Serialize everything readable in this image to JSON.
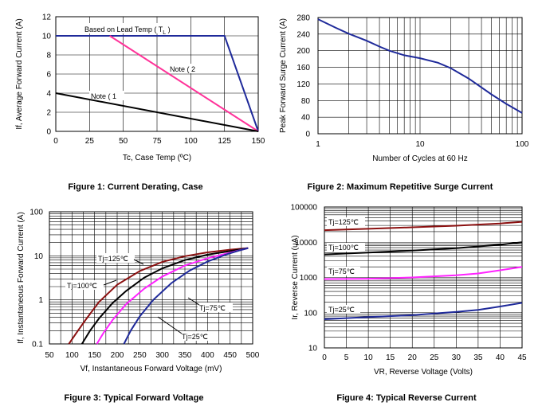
{
  "chart_data": [
    {
      "type": "line",
      "caption": "Figure 1: Current Derating, Case",
      "xlabel": "Tc, Case Temp (ºC)",
      "ylabel": "If, Average Forward Current (A)",
      "xlim": [
        0,
        150
      ],
      "ylim": [
        0,
        12
      ],
      "xticks": [
        "0",
        "25",
        "50",
        "75",
        "100",
        "125",
        "150"
      ],
      "yticks": [
        "0",
        "2",
        "4",
        "6",
        "8",
        "10",
        "12"
      ],
      "grid": true,
      "series": [
        {
          "name": "Based on Lead Temp ( T",
          "name_sub": "L",
          "name_end": " )",
          "color": "#1f2a9a",
          "x": [
            0,
            125,
            150
          ],
          "y": [
            10,
            10,
            0
          ]
        },
        {
          "name": "Note ( 2",
          "color": "#ff3399",
          "x": [
            40,
            150
          ],
          "y": [
            10,
            0
          ]
        },
        {
          "name": "Note ( 1",
          "color": "#000000",
          "x": [
            0,
            150
          ],
          "y": [
            4,
            0
          ]
        }
      ]
    },
    {
      "type": "line",
      "caption": "Figure 2: Maximum Repetitive Surge Current",
      "xlabel": "Number of Cycles at 60 Hz",
      "ylabel": "Peak Forward Surge Current (A)",
      "xscale": "log",
      "xlim": [
        1,
        100
      ],
      "ylim": [
        0,
        280
      ],
      "xticks": [
        "1",
        "10",
        "100"
      ],
      "yticks": [
        "0",
        "40",
        "80",
        "120",
        "160",
        "200",
        "240",
        "280"
      ],
      "grid": true,
      "series": [
        {
          "color": "#1f2a9a",
          "x": [
            1,
            1.5,
            2,
            3,
            4,
            5,
            7,
            10,
            15,
            20,
            30,
            50,
            70,
            100
          ],
          "y": [
            276,
            255,
            241,
            224,
            210,
            200,
            189,
            182,
            171,
            158,
            133,
            95,
            72,
            50
          ]
        }
      ]
    },
    {
      "type": "line",
      "caption": "Figure 3: Typical Forward Voltage",
      "xlabel": "Vf, Instantaneous Forward  Voltage (mV)",
      "ylabel": "If, Instantaneous Forward Current (A)",
      "yscale": "log",
      "xlim": [
        50,
        500
      ],
      "ylim": [
        0.1,
        100
      ],
      "xticks": [
        "50",
        "100",
        "150",
        "200",
        "250",
        "300",
        "350",
        "400",
        "450",
        "500"
      ],
      "yticks": [
        "0.1",
        "1",
        "10",
        "100"
      ],
      "grid": true,
      "series": [
        {
          "name": "Tj=125℃",
          "color": "#8b1010",
          "x": [
            93,
            110,
            130,
            160,
            200,
            250,
            300,
            350,
            400,
            450,
            490
          ],
          "y": [
            0.1,
            0.18,
            0.35,
            0.9,
            2.2,
            4.5,
            7.3,
            9.8,
            12,
            13.8,
            15
          ]
        },
        {
          "name": "Tj=100℃",
          "color": "#000000",
          "x": [
            122,
            140,
            160,
            190,
            220,
            260,
            300,
            350,
            400,
            450,
            490
          ],
          "y": [
            0.1,
            0.2,
            0.38,
            0.85,
            1.6,
            3.2,
            5.2,
            8,
            10.6,
            12.8,
            15
          ]
        },
        {
          "name": "Tj=75℃",
          "color": "#ff22ff",
          "x": [
            155,
            170,
            190,
            220,
            260,
            300,
            350,
            400,
            450,
            490
          ],
          "y": [
            0.1,
            0.18,
            0.35,
            0.8,
            1.8,
            3.4,
            6,
            8.8,
            11.8,
            15
          ]
        },
        {
          "name": "Tj=25℃",
          "color": "#1f2a9a",
          "x": [
            215,
            230,
            250,
            280,
            320,
            360,
            400,
            440,
            470,
            490
          ],
          "y": [
            0.1,
            0.2,
            0.42,
            1.0,
            2.4,
            4.6,
            7.4,
            10.6,
            13.2,
            15
          ]
        }
      ]
    },
    {
      "type": "line",
      "caption": "Figure 4: Typical Reverse Current",
      "xlabel": "VR, Reverse Voltage (Volts)",
      "ylabel": "Ir, Reverse Current (uA)",
      "yscale": "log",
      "xlim": [
        0,
        45
      ],
      "ylim": [
        10,
        100000
      ],
      "xticks": [
        "0",
        "5",
        "10",
        "15",
        "20",
        "25",
        "30",
        "35",
        "40",
        "45"
      ],
      "yticks": [
        "10",
        "100",
        "1000",
        "10000",
        "100000"
      ],
      "grid": true,
      "series": [
        {
          "name": "Tj=125℃",
          "color": "#8b1010",
          "x": [
            0,
            10,
            20,
            30,
            40,
            45
          ],
          "y": [
            22000,
            24000,
            26500,
            29500,
            34000,
            38000
          ]
        },
        {
          "name": "Tj=100℃",
          "color": "#000000",
          "x": [
            0,
            10,
            20,
            30,
            40,
            45
          ],
          "y": [
            4500,
            5100,
            5800,
            6800,
            8500,
            10000
          ]
        },
        {
          "name": "Tj=75℃",
          "color": "#ff22ff",
          "x": [
            0,
            10,
            20,
            30,
            35,
            40,
            45
          ],
          "y": [
            900,
            920,
            1000,
            1150,
            1300,
            1600,
            2000
          ]
        },
        {
          "name": "Tj=25℃",
          "color": "#1f2a9a",
          "x": [
            0,
            10,
            20,
            25,
            30,
            35,
            40,
            45
          ],
          "y": [
            65,
            75,
            85,
            95,
            105,
            120,
            150,
            190
          ]
        }
      ]
    }
  ]
}
